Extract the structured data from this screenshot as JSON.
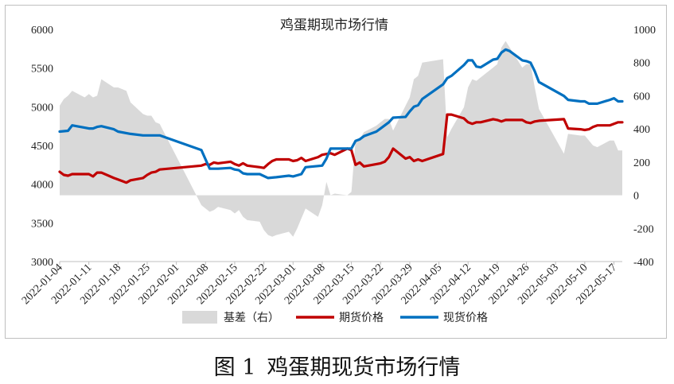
{
  "caption": {
    "figure_no": "图 1",
    "text": "鸡蛋期现货市场行情"
  },
  "chart_data": {
    "type": "line",
    "title": "鸡蛋期现市场行情",
    "y_left": {
      "min": 3000,
      "max": 6000,
      "step": 500,
      "ticks": [
        "3000",
        "3500",
        "4000",
        "4500",
        "5000",
        "5500",
        "6000"
      ]
    },
    "y_right": {
      "min": -400,
      "max": 1000,
      "step": 200,
      "ticks": [
        "-400",
        "-200",
        "0",
        "200",
        "400",
        "600",
        "800",
        "1000"
      ]
    },
    "x_ticks": [
      "2022-01-04",
      "2022-01-11",
      "2022-01-18",
      "2022-01-25",
      "2022-02-01",
      "2022-02-08",
      "2022-02-15",
      "2022-02-22",
      "2022-03-01",
      "2022-03-08",
      "2022-03-15",
      "2022-03-22",
      "2022-03-29",
      "2022-04-05",
      "2022-04-12",
      "2022-04-19",
      "2022-04-26",
      "2022-05-03",
      "2022-05-10",
      "2022-05-17"
    ],
    "x_range": [
      "2022-01-04",
      "2022-05-19"
    ],
    "legend": [
      {
        "name": "基差（右）",
        "color": "#d9d9d9",
        "kind": "area"
      },
      {
        "name": "期货价格",
        "color": "#c00000",
        "kind": "line"
      },
      {
        "name": "现货价格",
        "color": "#0070c0",
        "kind": "line"
      }
    ],
    "series": [
      {
        "name": "期货价格",
        "axis": "left",
        "color": "#c00000",
        "points": [
          [
            "2022-01-04",
            4160
          ],
          [
            "2022-01-05",
            4120
          ],
          [
            "2022-01-06",
            4110
          ],
          [
            "2022-01-07",
            4130
          ],
          [
            "2022-01-10",
            4130
          ],
          [
            "2022-01-11",
            4130
          ],
          [
            "2022-01-12",
            4100
          ],
          [
            "2022-01-13",
            4150
          ],
          [
            "2022-01-14",
            4150
          ],
          [
            "2022-01-17",
            4080
          ],
          [
            "2022-01-18",
            4060
          ],
          [
            "2022-01-19",
            4040
          ],
          [
            "2022-01-20",
            4020
          ],
          [
            "2022-01-21",
            4050
          ],
          [
            "2022-01-24",
            4080
          ],
          [
            "2022-01-25",
            4120
          ],
          [
            "2022-01-26",
            4150
          ],
          [
            "2022-01-27",
            4160
          ],
          [
            "2022-01-28",
            4190
          ],
          [
            "2022-02-07",
            4240
          ],
          [
            "2022-02-08",
            4260
          ],
          [
            "2022-02-09",
            4250
          ],
          [
            "2022-02-10",
            4280
          ],
          [
            "2022-02-11",
            4270
          ],
          [
            "2022-02-14",
            4290
          ],
          [
            "2022-02-15",
            4260
          ],
          [
            "2022-02-16",
            4240
          ],
          [
            "2022-02-17",
            4270
          ],
          [
            "2022-02-18",
            4240
          ],
          [
            "2022-02-21",
            4220
          ],
          [
            "2022-02-22",
            4210
          ],
          [
            "2022-02-23",
            4260
          ],
          [
            "2022-02-24",
            4300
          ],
          [
            "2022-02-25",
            4320
          ],
          [
            "2022-02-28",
            4320
          ],
          [
            "2022-03-01",
            4300
          ],
          [
            "2022-03-02",
            4310
          ],
          [
            "2022-03-03",
            4340
          ],
          [
            "2022-03-04",
            4300
          ],
          [
            "2022-03-07",
            4350
          ],
          [
            "2022-03-08",
            4380
          ],
          [
            "2022-03-09",
            4390
          ],
          [
            "2022-03-10",
            4400
          ],
          [
            "2022-03-11",
            4380
          ],
          [
            "2022-03-14",
            4460
          ],
          [
            "2022-03-15",
            4440
          ],
          [
            "2022-03-16",
            4250
          ],
          [
            "2022-03-17",
            4280
          ],
          [
            "2022-03-18",
            4230
          ],
          [
            "2022-03-21",
            4260
          ],
          [
            "2022-03-22",
            4270
          ],
          [
            "2022-03-23",
            4290
          ],
          [
            "2022-03-24",
            4350
          ],
          [
            "2022-03-25",
            4460
          ],
          [
            "2022-03-28",
            4330
          ],
          [
            "2022-03-29",
            4350
          ],
          [
            "2022-03-30",
            4300
          ],
          [
            "2022-03-31",
            4320
          ],
          [
            "2022-04-01",
            4300
          ],
          [
            "2022-04-06",
            4390
          ],
          [
            "2022-04-07",
            4900
          ],
          [
            "2022-04-08",
            4900
          ],
          [
            "2022-04-11",
            4850
          ],
          [
            "2022-04-12",
            4800
          ],
          [
            "2022-04-13",
            4780
          ],
          [
            "2022-04-14",
            4800
          ],
          [
            "2022-04-15",
            4800
          ],
          [
            "2022-04-18",
            4840
          ],
          [
            "2022-04-19",
            4830
          ],
          [
            "2022-04-20",
            4810
          ],
          [
            "2022-04-21",
            4830
          ],
          [
            "2022-04-22",
            4830
          ],
          [
            "2022-04-25",
            4830
          ],
          [
            "2022-04-26",
            4800
          ],
          [
            "2022-04-27",
            4790
          ],
          [
            "2022-04-28",
            4810
          ],
          [
            "2022-04-29",
            4820
          ],
          [
            "2022-05-05",
            4840
          ],
          [
            "2022-05-06",
            4720
          ],
          [
            "2022-05-09",
            4710
          ],
          [
            "2022-05-10",
            4700
          ],
          [
            "2022-05-11",
            4710
          ],
          [
            "2022-05-12",
            4740
          ],
          [
            "2022-05-13",
            4760
          ],
          [
            "2022-05-16",
            4760
          ],
          [
            "2022-05-17",
            4780
          ],
          [
            "2022-05-18",
            4800
          ],
          [
            "2022-05-19",
            4800
          ]
        ]
      },
      {
        "name": "现货价格",
        "axis": "left",
        "color": "#0070c0",
        "points": [
          [
            "2022-01-04",
            4680
          ],
          [
            "2022-01-06",
            4690
          ],
          [
            "2022-01-07",
            4760
          ],
          [
            "2022-01-10",
            4730
          ],
          [
            "2022-01-11",
            4720
          ],
          [
            "2022-01-12",
            4720
          ],
          [
            "2022-01-13",
            4740
          ],
          [
            "2022-01-14",
            4750
          ],
          [
            "2022-01-17",
            4710
          ],
          [
            "2022-01-18",
            4680
          ],
          [
            "2022-01-21",
            4650
          ],
          [
            "2022-01-24",
            4630
          ],
          [
            "2022-01-28",
            4630
          ],
          [
            "2022-02-07",
            4440
          ],
          [
            "2022-02-09",
            4200
          ],
          [
            "2022-02-10",
            4200
          ],
          [
            "2022-02-11",
            4200
          ],
          [
            "2022-02-14",
            4210
          ],
          [
            "2022-02-15",
            4190
          ],
          [
            "2022-02-16",
            4180
          ],
          [
            "2022-02-17",
            4140
          ],
          [
            "2022-02-18",
            4130
          ],
          [
            "2022-02-21",
            4130
          ],
          [
            "2022-02-23",
            4080
          ],
          [
            "2022-02-25",
            4090
          ],
          [
            "2022-02-28",
            4110
          ],
          [
            "2022-03-01",
            4100
          ],
          [
            "2022-03-03",
            4130
          ],
          [
            "2022-03-04",
            4220
          ],
          [
            "2022-03-08",
            4240
          ],
          [
            "2022-03-09",
            4330
          ],
          [
            "2022-03-10",
            4460
          ],
          [
            "2022-03-14",
            4460
          ],
          [
            "2022-03-15",
            4460
          ],
          [
            "2022-03-16",
            4560
          ],
          [
            "2022-03-17",
            4580
          ],
          [
            "2022-03-18",
            4620
          ],
          [
            "2022-03-21",
            4680
          ],
          [
            "2022-03-22",
            4720
          ],
          [
            "2022-03-23",
            4760
          ],
          [
            "2022-03-24",
            4800
          ],
          [
            "2022-03-25",
            4860
          ],
          [
            "2022-03-28",
            4870
          ],
          [
            "2022-03-29",
            4940
          ],
          [
            "2022-03-30",
            5000
          ],
          [
            "2022-03-31",
            5020
          ],
          [
            "2022-04-01",
            5100
          ],
          [
            "2022-04-06",
            5290
          ],
          [
            "2022-04-07",
            5370
          ],
          [
            "2022-04-08",
            5400
          ],
          [
            "2022-04-11",
            5540
          ],
          [
            "2022-04-12",
            5600
          ],
          [
            "2022-04-13",
            5600
          ],
          [
            "2022-04-14",
            5520
          ],
          [
            "2022-04-15",
            5510
          ],
          [
            "2022-04-18",
            5610
          ],
          [
            "2022-04-19",
            5620
          ],
          [
            "2022-04-20",
            5700
          ],
          [
            "2022-04-21",
            5740
          ],
          [
            "2022-04-22",
            5720
          ],
          [
            "2022-04-25",
            5600
          ],
          [
            "2022-04-26",
            5590
          ],
          [
            "2022-04-27",
            5570
          ],
          [
            "2022-04-28",
            5460
          ],
          [
            "2022-04-29",
            5320
          ],
          [
            "2022-05-05",
            5140
          ],
          [
            "2022-05-06",
            5090
          ],
          [
            "2022-05-09",
            5070
          ],
          [
            "2022-05-10",
            5070
          ],
          [
            "2022-05-11",
            5040
          ],
          [
            "2022-05-12",
            5040
          ],
          [
            "2022-05-13",
            5040
          ],
          [
            "2022-05-16",
            5090
          ],
          [
            "2022-05-17",
            5110
          ],
          [
            "2022-05-18",
            5070
          ],
          [
            "2022-05-19",
            5070
          ]
        ]
      },
      {
        "name": "基差（右）",
        "axis": "right",
        "color": "#d9d9d9",
        "kind": "area",
        "points": [
          [
            "2022-01-04",
            540
          ],
          [
            "2022-01-05",
            580
          ],
          [
            "2022-01-06",
            600
          ],
          [
            "2022-01-07",
            630
          ],
          [
            "2022-01-10",
            590
          ],
          [
            "2022-01-11",
            610
          ],
          [
            "2022-01-12",
            590
          ],
          [
            "2022-01-13",
            600
          ],
          [
            "2022-01-14",
            700
          ],
          [
            "2022-01-17",
            650
          ],
          [
            "2022-01-18",
            650
          ],
          [
            "2022-01-19",
            640
          ],
          [
            "2022-01-20",
            630
          ],
          [
            "2022-01-21",
            560
          ],
          [
            "2022-01-24",
            490
          ],
          [
            "2022-01-25",
            480
          ],
          [
            "2022-01-26",
            480
          ],
          [
            "2022-01-27",
            440
          ],
          [
            "2022-01-28",
            430
          ],
          [
            "2022-02-07",
            -60
          ],
          [
            "2022-02-08",
            -80
          ],
          [
            "2022-02-09",
            -100
          ],
          [
            "2022-02-10",
            -90
          ],
          [
            "2022-02-11",
            -70
          ],
          [
            "2022-02-14",
            -90
          ],
          [
            "2022-02-15",
            -110
          ],
          [
            "2022-02-16",
            -90
          ],
          [
            "2022-02-17",
            -130
          ],
          [
            "2022-02-18",
            -150
          ],
          [
            "2022-02-21",
            -160
          ],
          [
            "2022-02-22",
            -210
          ],
          [
            "2022-02-23",
            -240
          ],
          [
            "2022-02-24",
            -250
          ],
          [
            "2022-02-25",
            -240
          ],
          [
            "2022-02-28",
            -220
          ],
          [
            "2022-03-01",
            -250
          ],
          [
            "2022-03-02",
            -200
          ],
          [
            "2022-03-03",
            -140
          ],
          [
            "2022-03-04",
            -80
          ],
          [
            "2022-03-07",
            -130
          ],
          [
            "2022-03-08",
            -60
          ],
          [
            "2022-03-09",
            80
          ],
          [
            "2022-03-10",
            0
          ],
          [
            "2022-03-11",
            10
          ],
          [
            "2022-03-14",
            0
          ],
          [
            "2022-03-15",
            20
          ],
          [
            "2022-03-16",
            330
          ],
          [
            "2022-03-17",
            340
          ],
          [
            "2022-03-18",
            380
          ],
          [
            "2022-03-21",
            420
          ],
          [
            "2022-03-22",
            440
          ],
          [
            "2022-03-23",
            460
          ],
          [
            "2022-03-24",
            460
          ],
          [
            "2022-03-25",
            390
          ],
          [
            "2022-03-28",
            540
          ],
          [
            "2022-03-29",
            590
          ],
          [
            "2022-03-30",
            700
          ],
          [
            "2022-03-31",
            720
          ],
          [
            "2022-04-01",
            800
          ],
          [
            "2022-04-06",
            820
          ],
          [
            "2022-04-07",
            350
          ],
          [
            "2022-04-08",
            400
          ],
          [
            "2022-04-11",
            530
          ],
          [
            "2022-04-12",
            650
          ],
          [
            "2022-04-13",
            700
          ],
          [
            "2022-04-14",
            690
          ],
          [
            "2022-04-15",
            710
          ],
          [
            "2022-04-18",
            770
          ],
          [
            "2022-04-19",
            790
          ],
          [
            "2022-04-20",
            890
          ],
          [
            "2022-04-21",
            930
          ],
          [
            "2022-04-22",
            890
          ],
          [
            "2022-04-25",
            770
          ],
          [
            "2022-04-26",
            790
          ],
          [
            "2022-04-27",
            790
          ],
          [
            "2022-04-28",
            650
          ],
          [
            "2022-04-29",
            520
          ],
          [
            "2022-05-05",
            250
          ],
          [
            "2022-05-06",
            370
          ],
          [
            "2022-05-09",
            360
          ],
          [
            "2022-05-10",
            360
          ],
          [
            "2022-05-11",
            330
          ],
          [
            "2022-05-12",
            300
          ],
          [
            "2022-05-13",
            290
          ],
          [
            "2022-05-16",
            330
          ],
          [
            "2022-05-17",
            330
          ],
          [
            "2022-05-18",
            270
          ],
          [
            "2022-05-19",
            270
          ]
        ]
      }
    ]
  }
}
